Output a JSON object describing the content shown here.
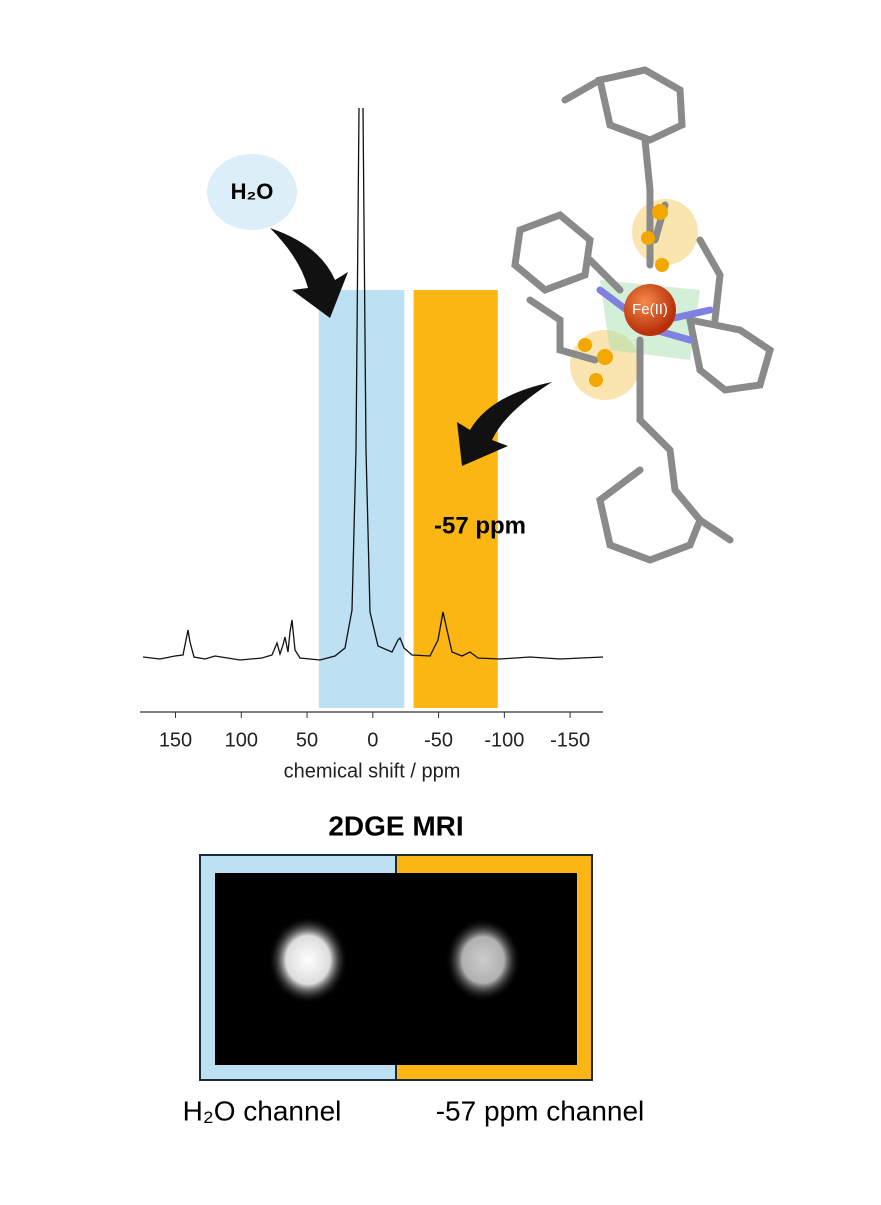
{
  "chart_data": {
    "type": "spectrum",
    "xlabel": "chemical shift / ppm",
    "xlim": [
      177,
      -175
    ],
    "xticks": [
      150,
      100,
      50,
      0,
      -50,
      -100,
      -150
    ],
    "bands": [
      {
        "range": [
          41,
          -24
        ],
        "color": "#bde0f2"
      },
      {
        "range": [
          -31,
          -95
        ],
        "color": "#fbb614"
      }
    ]
  },
  "annotations": {
    "water": "H₂O",
    "shift": "-57 ppm",
    "metal": "Fe(II)"
  },
  "mri": {
    "title": "2DGE MRI",
    "channels": [
      "H₂O channel",
      "-57 ppm channel"
    ]
  }
}
